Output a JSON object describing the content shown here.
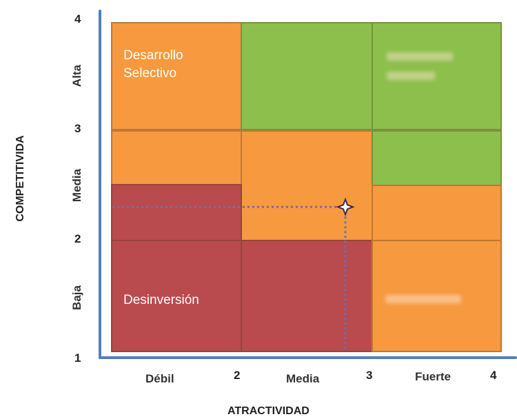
{
  "matrix": {
    "y_axis_title": "COMPETITIVIDA",
    "x_axis_title": "ATRACTIVIDAD",
    "y_categories": [
      "Alta",
      "Media",
      "Baja"
    ],
    "x_categories": [
      "Débil",
      "Media",
      "Fuerte"
    ],
    "y_ticks": [
      "4",
      "3",
      "2",
      "1"
    ],
    "x_ticks": [
      "2",
      "3",
      "4"
    ],
    "cell_labels": {
      "desarrollo": "Desarrollo\nSelectivo",
      "desinversion": "Desinversión"
    },
    "marker": {
      "atractividad": 2.8,
      "competitividad": 2.3
    },
    "colors": {
      "orange": "#f6993f",
      "green": "#8dbf4c",
      "red": "#b94a4e",
      "axis": "#4f7fbf",
      "guide": "#6a6fb8"
    }
  }
}
